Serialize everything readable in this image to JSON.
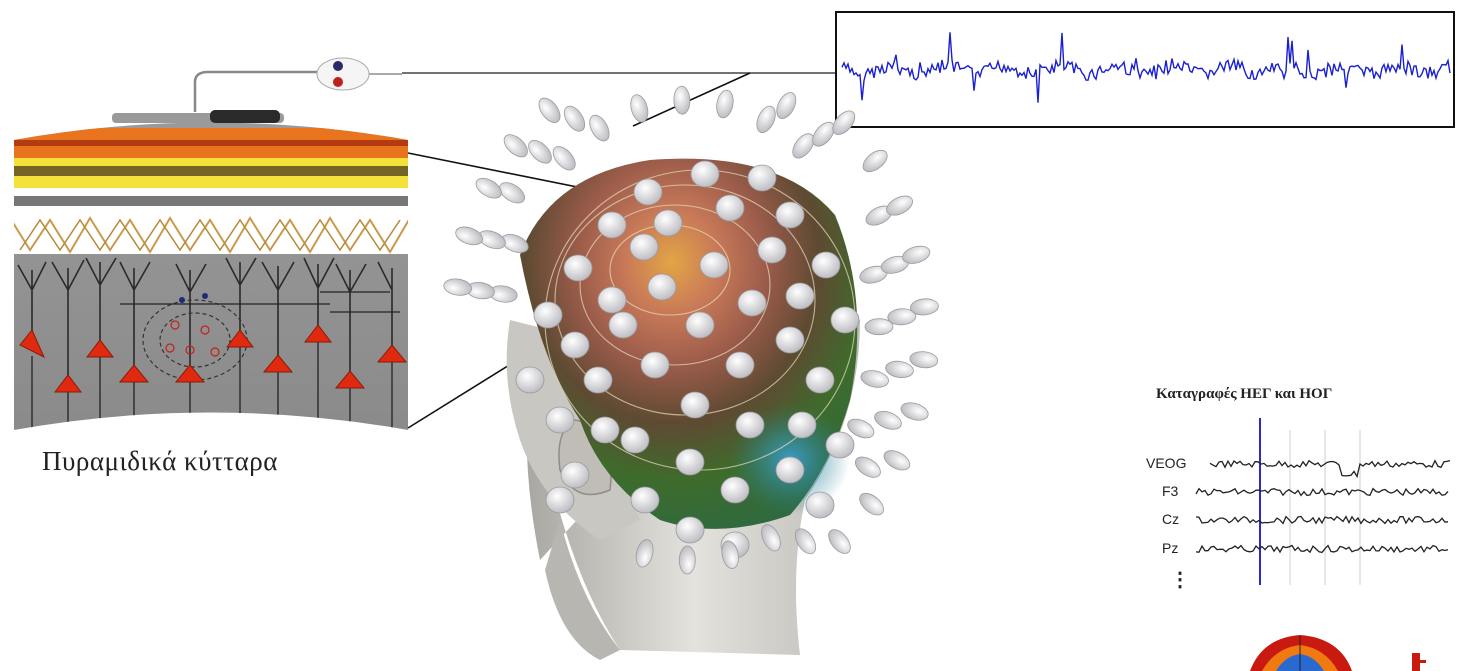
{
  "cortex": {
    "label": "Πυραμιδικά κύτταρα"
  },
  "recordings": {
    "title": "Καταγραφές ΗΕΓ και ΗΟΓ",
    "channels": [
      "VEOG",
      "F3",
      "Cz",
      "Pz"
    ],
    "more_indicator": "⋮"
  },
  "colors": {
    "eeg_trace": "#1a1fd0",
    "cortex_orange": "#e8741e",
    "cortex_yellow": "#f4e23a",
    "neuron_red": "#e02a10",
    "head_skin": "#d8d6d1",
    "electrode": "#dcdcdc",
    "map_green": "#3f6b2c",
    "map_blue": "#2f8fb8"
  }
}
